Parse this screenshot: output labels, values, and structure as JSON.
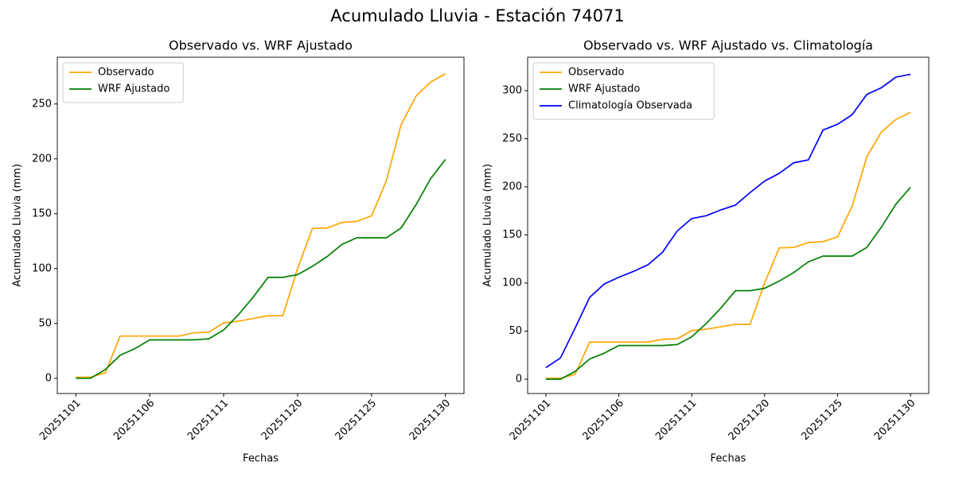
{
  "title": "Acumulado Lluvia - Estación 74071",
  "chart_data": [
    {
      "type": "line",
      "title": "Observado vs. WRF Ajustado",
      "xlabel": "Fechas",
      "ylabel": "Acumulado Lluvia (mm)",
      "categories": [
        "20251101",
        null,
        null,
        null,
        null,
        "20251106",
        null,
        null,
        null,
        null,
        "20251111",
        null,
        null,
        null,
        null,
        "20251120",
        null,
        null,
        null,
        null,
        "20251125",
        null,
        null,
        null,
        null,
        "20251130"
      ],
      "ylim": [
        -13.9,
        292.6
      ],
      "yticks": [
        0,
        50,
        100,
        150,
        200,
        250
      ],
      "legend": "upper left",
      "series": [
        {
          "name": "Observado",
          "color": "orange",
          "values": [
            1,
            1,
            5,
            38.5,
            38.5,
            38.5,
            38.5,
            38.5,
            41.5,
            42,
            50.5,
            52,
            54.5,
            57,
            57,
            100,
            136.5,
            137,
            142,
            143,
            148,
            180,
            231,
            257,
            270,
            277.5
          ]
        },
        {
          "name": "WRF Ajustado",
          "color": "green",
          "values": [
            0,
            0,
            8,
            21,
            27,
            35,
            35,
            35,
            35,
            36,
            44,
            58,
            74,
            92,
            92,
            94.5,
            102,
            111,
            122,
            128,
            128,
            128,
            137,
            158,
            182,
            199.5
          ]
        }
      ]
    },
    {
      "type": "line",
      "title": "Observado vs. WRF Ajustado vs. Climatología",
      "xlabel": "Fechas",
      "ylabel": "Acumulado Lluvia (mm)",
      "categories": [
        "20251101",
        null,
        null,
        null,
        null,
        "20251106",
        null,
        null,
        null,
        null,
        "20251111",
        null,
        null,
        null,
        null,
        "20251120",
        null,
        null,
        null,
        null,
        "20251125",
        null,
        null,
        null,
        null,
        "20251130"
      ],
      "ylim": [
        -14.9,
        334.7
      ],
      "yticks": [
        0,
        50,
        100,
        150,
        200,
        250,
        300
      ],
      "legend": "upper left",
      "series": [
        {
          "name": "Observado",
          "color": "orange",
          "values": [
            1,
            1,
            5,
            38.5,
            38.5,
            38.5,
            38.5,
            38.5,
            41.5,
            42,
            50.5,
            52,
            54.5,
            57,
            57,
            100,
            136.5,
            137,
            142,
            143,
            148,
            180,
            231,
            257,
            270,
            277.5
          ]
        },
        {
          "name": "WRF Ajustado",
          "color": "green",
          "values": [
            0,
            0,
            8,
            21,
            27,
            35,
            35,
            35,
            35,
            36,
            44,
            58,
            74,
            92,
            92,
            94.5,
            102,
            111,
            122,
            128,
            128,
            128,
            137,
            158,
            182,
            199.5
          ]
        },
        {
          "name": "Climatología Observada",
          "color": "blue",
          "values": [
            12,
            22,
            53,
            85,
            99,
            106,
            112,
            119,
            132,
            154,
            167,
            170,
            176,
            181,
            194,
            206,
            214,
            225,
            228,
            259,
            265,
            275,
            296,
            303,
            314,
            317
          ]
        }
      ]
    }
  ]
}
